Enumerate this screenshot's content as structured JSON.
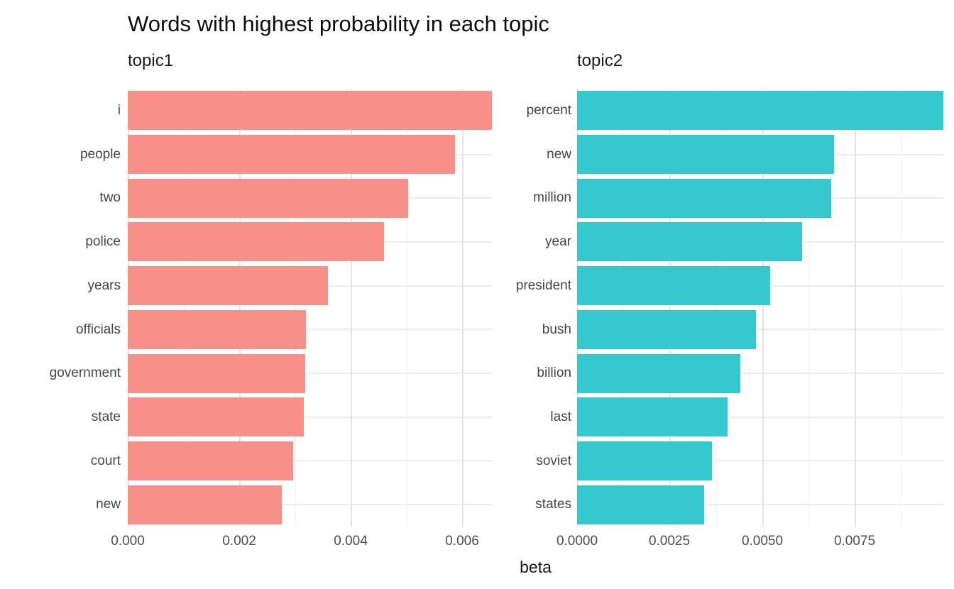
{
  "chart": {
    "title": "Words with highest probability in each topic",
    "xlabel": "beta"
  },
  "colors": {
    "topic1_bar": "#F8908A",
    "topic2_bar": "#35C8CD",
    "axis_text": "#4D4D4D",
    "title_text": "#0D0D0D",
    "grid_major": "#E4E4E4",
    "grid_minor": "#F0F0F0",
    "background": "#FFFFFF"
  },
  "chart_data": [
    {
      "type": "bar",
      "facet": "topic1",
      "orientation": "horizontal",
      "bar_color": "#F8908A",
      "categories": [
        "i",
        "people",
        "two",
        "police",
        "years",
        "officials",
        "government",
        "state",
        "court",
        "new"
      ],
      "values": [
        0.00653,
        0.00587,
        0.00503,
        0.0046,
        0.00359,
        0.00319,
        0.00318,
        0.00316,
        0.00297,
        0.00276
      ],
      "xlim": [
        0,
        0.00653
      ],
      "xticks": [
        0,
        0.002,
        0.004,
        0.006
      ],
      "xtick_labels": [
        "0.000",
        "0.002",
        "0.004",
        "0.006"
      ],
      "minor_xticks": [
        0.001,
        0.003,
        0.005
      ],
      "grid": "on",
      "legend": "none"
    },
    {
      "type": "bar",
      "facet": "topic2",
      "orientation": "horizontal",
      "bar_color": "#35C8CD",
      "categories": [
        "percent",
        "new",
        "million",
        "year",
        "president",
        "bush",
        "billion",
        "last",
        "soviet",
        "states"
      ],
      "values": [
        0.00989,
        0.00694,
        0.00686,
        0.00608,
        0.00521,
        0.00483,
        0.00441,
        0.00406,
        0.00364,
        0.00343
      ],
      "xlim": [
        0,
        0.00989
      ],
      "xticks": [
        0,
        0.0025,
        0.005,
        0.0075
      ],
      "xtick_labels": [
        "0.0000",
        "0.0025",
        "0.0050",
        "0.0075"
      ],
      "minor_xticks": [
        0.00125,
        0.00375,
        0.00625,
        0.00875
      ],
      "grid": "on",
      "legend": "none"
    }
  ]
}
